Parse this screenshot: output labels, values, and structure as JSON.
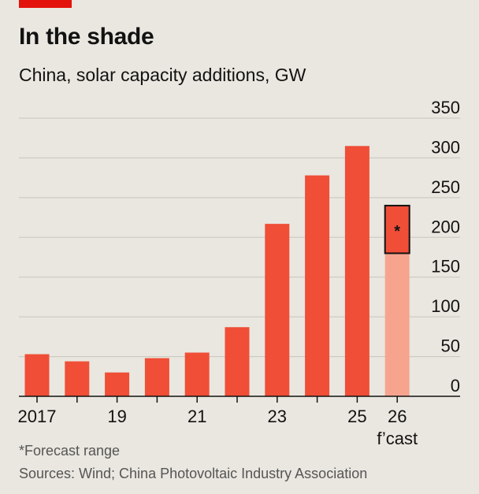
{
  "header": {
    "title": "In the shade",
    "subtitle": "China, solar capacity additions, GW"
  },
  "footer": {
    "footnote": "*Forecast range",
    "source": "Sources: Wind; China Photovoltaic Industry Association"
  },
  "colors": {
    "bar": "#f04e37",
    "forecast_bar": "#f7a48f",
    "band_stroke": "#121212",
    "band_fill": "#f04e37",
    "accent": "#e3120b",
    "grid": "#c7c5bd"
  },
  "chart_data": {
    "type": "bar",
    "categories": [
      "2017",
      "2018",
      "2019",
      "2020",
      "2021",
      "2022",
      "2023",
      "2024",
      "2025",
      "2026"
    ],
    "x_tick_labels": [
      "2017",
      "",
      "19",
      "",
      "21",
      "",
      "23",
      "",
      "25",
      "26"
    ],
    "x_tick_sublabel": {
      "category": "2026",
      "text": "f’cast"
    },
    "values": [
      53,
      44,
      30,
      48,
      55,
      87,
      217,
      278,
      315,
      180
    ],
    "forecast_category": "2026",
    "forecast_range": {
      "low": 180,
      "high": 240,
      "label": "*"
    },
    "ylim": [
      0,
      350
    ],
    "yticks": [
      0,
      50,
      100,
      150,
      200,
      250,
      300,
      350
    ],
    "y_axis_side": "right",
    "grid": true
  }
}
